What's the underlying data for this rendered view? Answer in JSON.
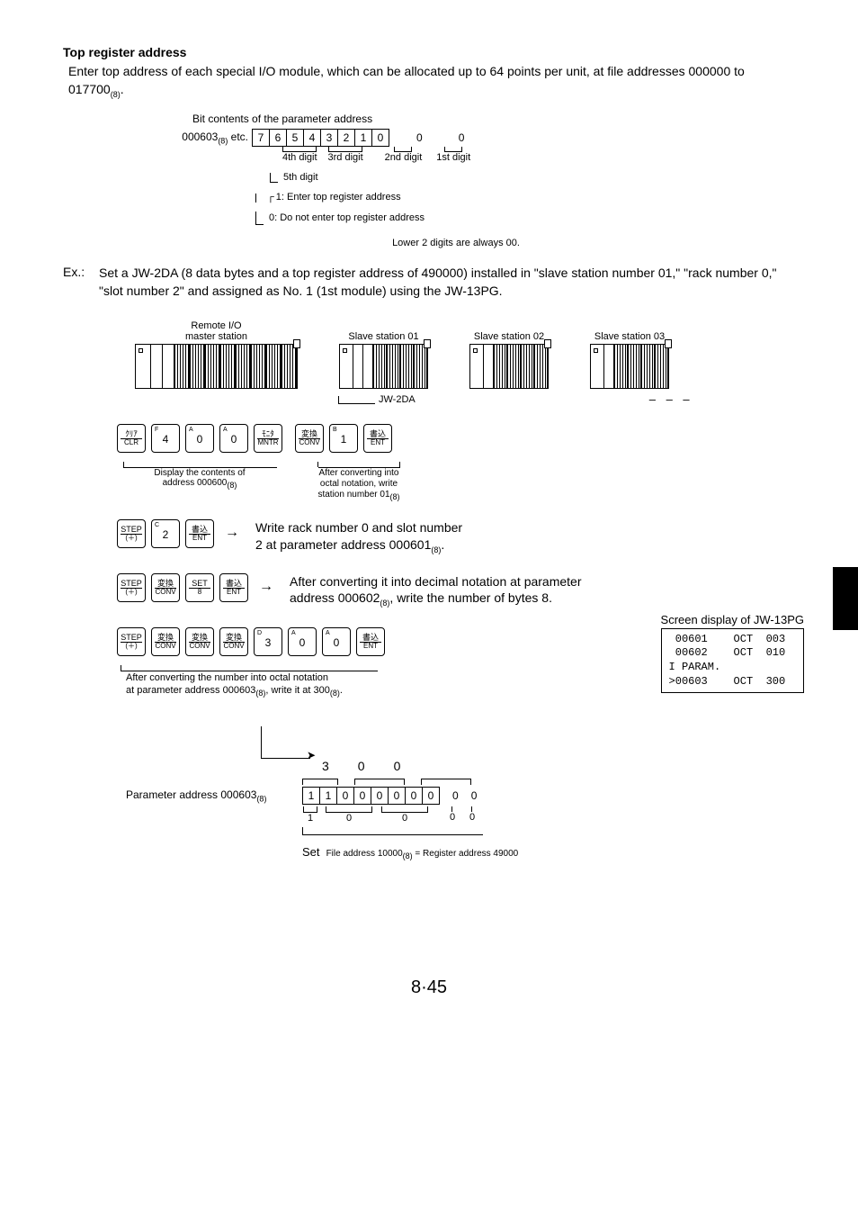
{
  "title": "Top register address",
  "intro": {
    "line": "Enter top address of each special I/O module, which can be allocated up to 64 points per unit, at file addresses 000000 to 017700",
    "sub": "(8)",
    "end": "."
  },
  "diagram1": {
    "caption": "Bit contents of the parameter address",
    "left_label_pre": "000603",
    "left_label_sub": "(8)",
    "left_label_post": " etc.",
    "bits": [
      "7",
      "6",
      "5",
      "4",
      "3",
      "2",
      "1",
      "0"
    ],
    "extra1": "0",
    "extra2": "0",
    "digit_labels": [
      "4th digit",
      "3rd digit",
      "2nd digit",
      "1st digit"
    ],
    "fifth": "5th digit",
    "branch1": "1: Enter top register address",
    "branch0": "0: Do not enter top register address",
    "note": "Lower 2 digits are always 00."
  },
  "example": {
    "label": "Ex.:",
    "text": "Set a JW-2DA (8 data bytes and a top register address of 490000) installed in \"slave station number 01,\" \"rack number 0,\" \"slot number 2\" and assigned as No. 1 (1st module) using the JW-13PG."
  },
  "stations": {
    "master": "Remote I/O\nmaster station",
    "slave01": "Slave station 01",
    "slave02": "Slave station 02",
    "slave03": "Slave station 03",
    "jw2da": "JW-2DA",
    "dashes": "– – –"
  },
  "seq1": {
    "keys_before": [
      {
        "top": "",
        "a": "ｸﾘｱ",
        "b": "CLR"
      },
      {
        "top": "F",
        "main": "4"
      },
      {
        "top": "A",
        "main": "0"
      },
      {
        "top": "A",
        "main": "0"
      },
      {
        "top": "",
        "a": "ﾓﾆﾀ",
        "b": "MNTR"
      }
    ],
    "keys_after": [
      {
        "top": "",
        "a": "変換",
        "b": "CONV"
      },
      {
        "top": "B",
        "main": "1"
      },
      {
        "top": "",
        "a": "書込",
        "b": "ENT"
      }
    ],
    "under_left_1": "Display the contents of",
    "under_left_2": "address 000600",
    "under_left_sub": "(8)",
    "under_right_1": "After converting into",
    "under_right_2": "octal notation, write",
    "under_right_3": "station number 01",
    "under_right_sub": "(8)"
  },
  "seq2": {
    "keys": [
      {
        "top": "",
        "a": "STEP",
        "b": "(＋)"
      },
      {
        "top": "C",
        "main": "2"
      },
      {
        "top": "",
        "a": "書込",
        "b": "ENT"
      }
    ],
    "desc1": "Write rack number 0 and slot number",
    "desc2": "2 at parameter address 000601",
    "desc2_sub": "(8)",
    "desc2_end": "."
  },
  "seq3": {
    "keys": [
      {
        "top": "",
        "a": "STEP",
        "b": "(＋)"
      },
      {
        "top": "",
        "a": "変換",
        "b": "CONV"
      },
      {
        "top": "",
        "a": "SET",
        "b": "8"
      },
      {
        "top": "",
        "a": "書込",
        "b": "ENT"
      }
    ],
    "desc1": "After converting it into decimal notation at parameter",
    "desc2": "address 000602",
    "desc2_sub": "(8)",
    "desc2_end": ", write the number of bytes 8."
  },
  "seq4": {
    "keys": [
      {
        "top": "",
        "a": "STEP",
        "b": "(＋)"
      },
      {
        "top": "",
        "a": "変換",
        "b": "CONV"
      },
      {
        "top": "",
        "a": "変換",
        "b": "CONV"
      },
      {
        "top": "",
        "a": "変換",
        "b": "CONV"
      },
      {
        "top": "D",
        "main": "3"
      },
      {
        "top": "A",
        "main": "0"
      },
      {
        "top": "A",
        "main": "0"
      },
      {
        "top": "",
        "a": "書込",
        "b": "ENT"
      }
    ],
    "under1": "After converting the number into octal notation",
    "under2_a": "at parameter address 000603",
    "under2_sub": "(8)",
    "under2_b": ", write it at 300",
    "under2_sub2": "(8)",
    "under2_c": "."
  },
  "screen": {
    "title": "Screen display of JW-13PG",
    "lines": " 00601    OCT  003\n 00602    OCT  010\nI PARAM.\n>00603    OCT  300"
  },
  "final": {
    "top_numbers": [
      "3",
      "0",
      "0"
    ],
    "label_pre": "Parameter address 000603",
    "label_sub": "(8)",
    "bits": [
      "1",
      "1",
      "0",
      "0",
      "0",
      "0",
      "0",
      "0"
    ],
    "extra": [
      "0",
      "0"
    ],
    "under_groups": [
      "1",
      "0",
      "0",
      "0",
      "0"
    ],
    "set_word": "Set",
    "set_rest_a": "File address 10000",
    "set_rest_sub": "(8)",
    "set_rest_b": " = Register address 49000"
  },
  "page": "8·45"
}
